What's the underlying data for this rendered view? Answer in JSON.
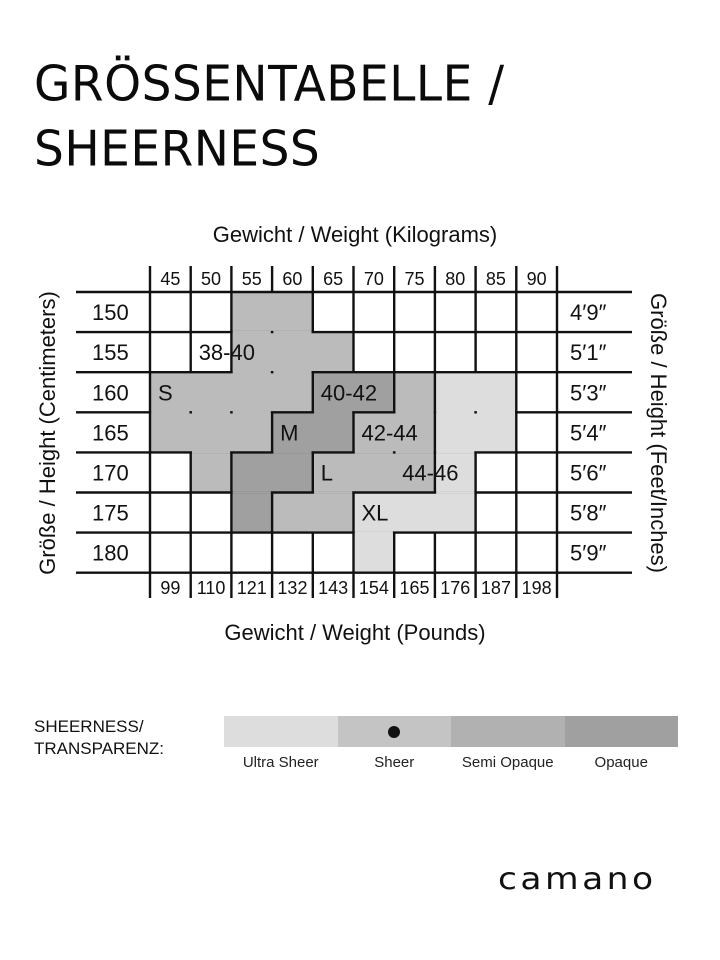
{
  "title": {
    "line1": "GRÖSSENTABELLE /",
    "line2": "SHEERNESS"
  },
  "axes": {
    "top": "Gewicht / Weight (Kilograms)",
    "bottom": "Gewicht / Weight (Pounds)",
    "left": "Größe / Height (Centimeters)",
    "right": "Größe / Height  (Feet/Inches)"
  },
  "weights_kg": [
    "45",
    "50",
    "55",
    "60",
    "65",
    "70",
    "75",
    "80",
    "85",
    "90"
  ],
  "weights_lb": [
    "99",
    "110",
    "121",
    "132",
    "143",
    "154",
    "165",
    "176",
    "187",
    "198"
  ],
  "heights_cm": [
    "150",
    "155",
    "160",
    "165",
    "170",
    "175",
    "180"
  ],
  "heights_ft": [
    "4′9″",
    "5′1″",
    "5′3″",
    "5′4″",
    "5′6″",
    "5′8″",
    "5′9″"
  ],
  "zones": [
    {
      "id": "s",
      "color": "#bbbbbb",
      "cells": [
        [
          2,
          0
        ],
        [
          3,
          0
        ],
        [
          2,
          1
        ],
        [
          3,
          1
        ],
        [
          4,
          1
        ],
        [
          0,
          2
        ],
        [
          1,
          2
        ],
        [
          2,
          2
        ],
        [
          3,
          2
        ],
        [
          4,
          2
        ],
        [
          0,
          3
        ],
        [
          1,
          3
        ],
        [
          2,
          3
        ],
        [
          1,
          4
        ],
        [
          2,
          4
        ]
      ]
    },
    {
      "id": "m",
      "color": "#a0a0a0",
      "cells": [
        [
          4,
          2
        ],
        [
          5,
          2
        ],
        [
          3,
          3
        ],
        [
          4,
          3
        ],
        [
          2,
          4
        ],
        [
          3,
          4
        ],
        [
          2,
          5
        ]
      ]
    },
    {
      "id": "l",
      "color": "#bbbbbb",
      "cells": [
        [
          6,
          2
        ],
        [
          5,
          3
        ],
        [
          6,
          3
        ],
        [
          4,
          4
        ],
        [
          5,
          4
        ],
        [
          6,
          4
        ],
        [
          3,
          5
        ],
        [
          4,
          5
        ],
        [
          5,
          5
        ]
      ]
    },
    {
      "id": "xl",
      "color": "#dddddd",
      "cells": [
        [
          7,
          2
        ],
        [
          8,
          2
        ],
        [
          7,
          3
        ],
        [
          8,
          3
        ],
        [
          7,
          4
        ],
        [
          6,
          5
        ],
        [
          7,
          5
        ],
        [
          5,
          5
        ],
        [
          5,
          6
        ]
      ]
    }
  ],
  "zone_labels": [
    {
      "text": "S",
      "col": 0,
      "row": 2
    },
    {
      "text": "38-40",
      "col": 1,
      "row": 1
    },
    {
      "text": "40-42",
      "col": 4,
      "row": 2
    },
    {
      "text": "M",
      "col": 3,
      "row": 3
    },
    {
      "text": "42-44",
      "col": 5,
      "row": 3
    },
    {
      "text": "L",
      "col": 4,
      "row": 4
    },
    {
      "text": "44-46",
      "col": 6,
      "row": 4
    },
    {
      "text": "XL",
      "col": 5,
      "row": 5
    }
  ],
  "sheerness": {
    "label_line1": "SHEERNESS/",
    "label_line2": "TRANSPARENZ:",
    "levels": [
      {
        "name": "Ultra Sheer",
        "color": "#dddddd"
      },
      {
        "name": "Sheer",
        "color": "#c4c4c4"
      },
      {
        "name": "Semi Opaque",
        "color": "#b1b1b1"
      },
      {
        "name": "Opaque",
        "color": "#a0a0a0"
      }
    ],
    "selected": "Sheer"
  },
  "brand": "camano"
}
